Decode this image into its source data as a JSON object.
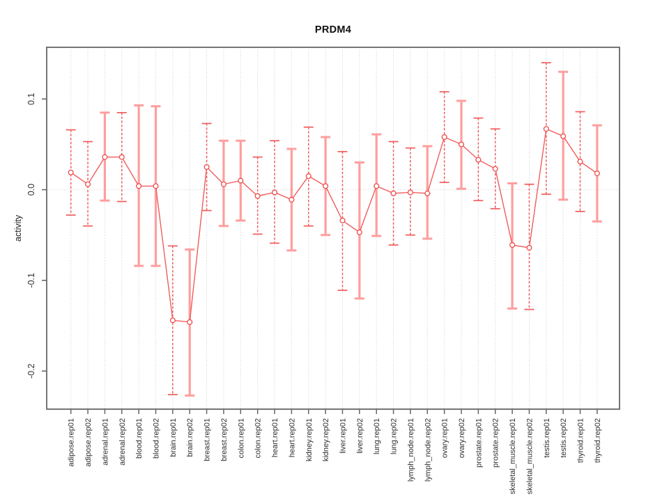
{
  "chart_data": {
    "type": "line",
    "title": "PRDM4",
    "xlabel": "",
    "ylabel": "activity",
    "ylim": [
      -0.242,
      0.157
    ],
    "yticks": [
      {
        "label": "0.1",
        "value": 0.1
      },
      {
        "label": "0.0",
        "value": 0.0
      },
      {
        "label": "-0.1",
        "value": -0.1
      },
      {
        "label": "-0.2",
        "value": -0.2
      }
    ],
    "grid": {
      "vertical_dotted_per_category": true,
      "zero_line_dotted": true,
      "legend": "none"
    },
    "categories": [
      "adipose.rep01",
      "adipose.rep02",
      "adrenal.rep01",
      "adrenal.rep02",
      "blood.rep01",
      "blood.rep02",
      "brain.rep01",
      "brain.rep02",
      "breast.rep01",
      "breast.rep02",
      "colon.rep01",
      "colon.rep02",
      "heart.rep01",
      "heart.rep02",
      "kidney.rep01",
      "kidney.rep02",
      "liver.rep01",
      "liver.rep02",
      "lung.rep01",
      "lung.rep02",
      "lymph_node.rep01",
      "lymph_node.rep02",
      "ovary.rep01",
      "ovary.rep02",
      "prostate.rep01",
      "prostate.rep02",
      "skeletal_muscle.rep01",
      "skeletal_muscle.rep02",
      "testis.rep01",
      "testis.rep02",
      "thyroid.rep01",
      "thyroid.rep02"
    ],
    "series": [
      {
        "name": "activity",
        "marker": "open-circle",
        "values": [
          0.019,
          0.006,
          0.036,
          0.036,
          0.004,
          0.004,
          -0.144,
          -0.146,
          0.025,
          0.006,
          0.01,
          -0.007,
          -0.003,
          -0.011,
          0.015,
          0.004,
          -0.034,
          -0.047,
          0.004,
          -0.004,
          -0.003,
          -0.004,
          0.058,
          0.05,
          0.033,
          0.023,
          -0.061,
          -0.064,
          0.067,
          0.059,
          0.031,
          0.018
        ],
        "ci_high": [
          0.066,
          0.053,
          0.085,
          0.085,
          0.093,
          0.092,
          -0.062,
          -0.066,
          0.073,
          0.054,
          0.054,
          0.036,
          0.054,
          0.045,
          0.069,
          0.058,
          0.042,
          0.03,
          0.061,
          0.053,
          0.046,
          0.048,
          0.108,
          0.098,
          0.079,
          0.067,
          0.007,
          0.006,
          0.14,
          0.13,
          0.086,
          0.071
        ],
        "ci_low": [
          -0.028,
          -0.04,
          -0.012,
          -0.013,
          -0.084,
          -0.084,
          -0.226,
          -0.227,
          -0.023,
          -0.04,
          -0.034,
          -0.049,
          -0.059,
          -0.067,
          -0.04,
          -0.05,
          -0.111,
          -0.12,
          -0.051,
          -0.061,
          -0.05,
          -0.054,
          0.008,
          0.001,
          -0.012,
          -0.021,
          -0.131,
          -0.132,
          -0.005,
          -0.011,
          -0.024,
          -0.035
        ],
        "bar_style": [
          "dashed",
          "dashed",
          "solid",
          "dashed",
          "solid",
          "solid",
          "dashed",
          "solid",
          "dashed",
          "solid",
          "solid",
          "dashed",
          "dashed",
          "solid",
          "dashed",
          "solid",
          "dashed",
          "solid",
          "solid",
          "dashed",
          "dashed",
          "solid",
          "dashed",
          "solid",
          "dashed",
          "dashed",
          "solid",
          "dashed",
          "dashed",
          "solid",
          "dashed",
          "solid"
        ]
      }
    ],
    "colors": {
      "series_line": "#f15c5c",
      "marker_stroke": "#ee4c4c",
      "bar_solid": "#ff9e9e",
      "bar_dashed": "#f15c5c",
      "grid": "#c8c8c8",
      "axis": "#666666",
      "tick_label": "#2e2e2e",
      "title": "#111111"
    }
  }
}
